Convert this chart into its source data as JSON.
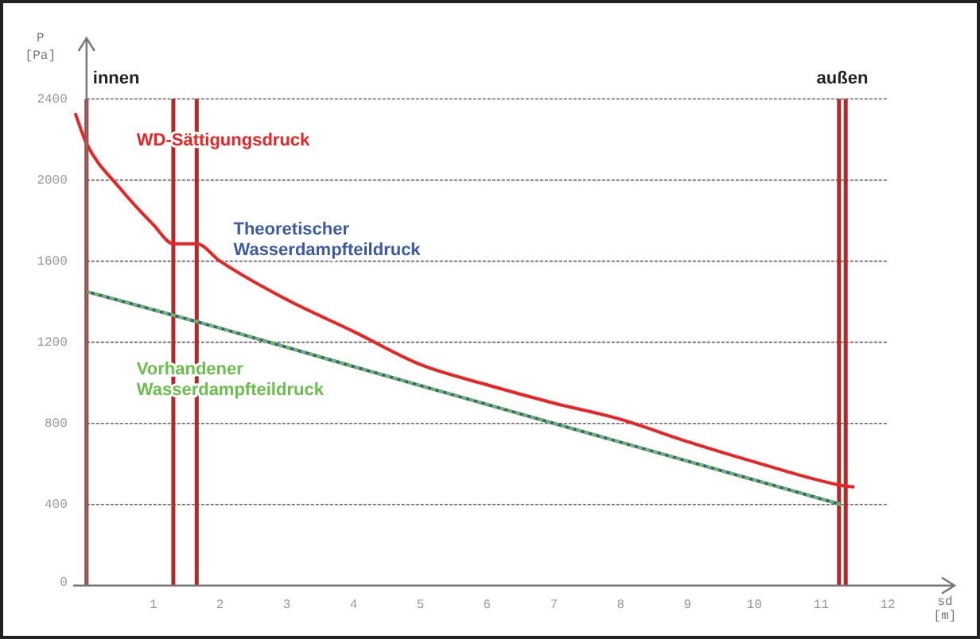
{
  "chart_data": {
    "type": "line",
    "xlabel": "sd [m]",
    "ylabel": "P [Pa]",
    "xlim": [
      -0.2,
      13
    ],
    "xticks": [
      1,
      2,
      3,
      4,
      5,
      6,
      7,
      8,
      9,
      10,
      11,
      12
    ],
    "ylim": [
      0,
      2700
    ],
    "yticks": [
      0,
      400,
      800,
      1200,
      1600,
      2000,
      2400
    ],
    "grid": "y",
    "legend": false,
    "marker": "none",
    "series": [
      {
        "name": "WD-Sättigungsdruck",
        "color": "#ee2222",
        "line_style": "solid",
        "x": [
          -0.17,
          0,
          0.5,
          1,
          1.3,
          1.65,
          2,
          3,
          4,
          5,
          6,
          7,
          8,
          9,
          10,
          11.3,
          11.5
        ],
        "values": [
          2330,
          2180,
          1960,
          1780,
          1686,
          1686,
          1600,
          1410,
          1253,
          1090,
          990,
          900,
          820,
          710,
          610,
          494,
          486
        ]
      },
      {
        "name": "Theoretischer Wasserdampfteildruck",
        "color": "#3a5aa8",
        "line_style": "solid",
        "x": [
          0,
          2,
          4,
          7,
          11.3
        ],
        "values": [
          1450,
          1270,
          1080,
          800,
          400
        ]
      },
      {
        "name": "Vorhandener Wasserdampfteildruck",
        "color": "#6abf4b",
        "line_style": "dashed",
        "x": [
          0,
          2,
          4,
          7,
          11.3
        ],
        "values": [
          1450,
          1270,
          1080,
          800,
          400
        ]
      }
    ],
    "ref_lines": [
      {
        "axis": "x",
        "value": 0,
        "color": "#b02a2a"
      },
      {
        "axis": "x",
        "value": 1.3,
        "color": "#b02a2a"
      },
      {
        "axis": "x",
        "value": 1.65,
        "color": "#b02a2a"
      },
      {
        "axis": "x",
        "value": 11.27,
        "color": "#b02a2a"
      },
      {
        "axis": "x",
        "value": 11.37,
        "color": "#b02a2a"
      }
    ],
    "annotations": [
      "innen",
      "außen"
    ]
  }
}
